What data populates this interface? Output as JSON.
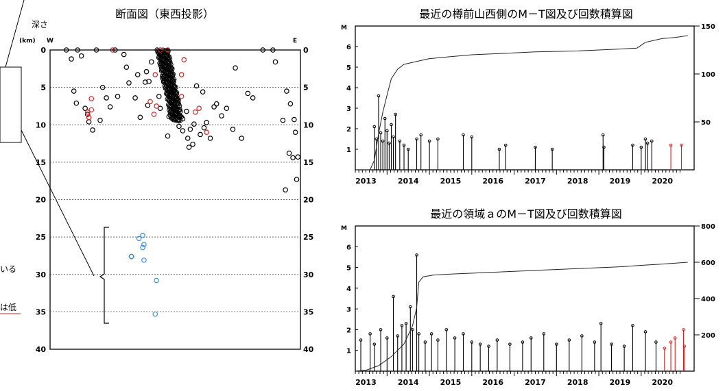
{
  "side_fragments": [
    "いる",
    "は低"
  ],
  "chart_data": [
    {
      "type": "scatter",
      "title": "断面図（東西投影）",
      "ylabel": "深さ",
      "yunit": "(km)",
      "west_label": "W",
      "east_label": "E",
      "ylim": [
        0,
        40
      ],
      "yticks": [
        0,
        5,
        10,
        15,
        20,
        25,
        30,
        35,
        40
      ],
      "grid": true,
      "series": [
        {
          "color": "#000000",
          "points": [
            [
              -0.87,
              0.0
            ],
            [
              -0.75,
              0.8
            ],
            [
              -0.83,
              1.2
            ],
            [
              -0.78,
              0.0
            ],
            [
              -0.63,
              0.0
            ],
            [
              -0.48,
              0.0
            ],
            [
              -0.39,
              2.3
            ],
            [
              -0.41,
              0.6
            ],
            [
              -0.3,
              3.3
            ],
            [
              -0.23,
              2.9
            ],
            [
              -0.19,
              1.6
            ],
            [
              -0.21,
              4.2
            ],
            [
              -0.13,
              6.2
            ],
            [
              -0.12,
              7.8
            ],
            [
              -0.1,
              3.8
            ],
            [
              -0.05,
              8.9
            ],
            [
              -0.03,
              5.7
            ],
            [
              0.0,
              8.0
            ],
            [
              0.03,
              10.2
            ],
            [
              0.06,
              10.8
            ],
            [
              0.1,
              11.8
            ],
            [
              0.11,
              13.0
            ],
            [
              0.14,
              12.6
            ],
            [
              0.2,
              11.3
            ],
            [
              0.23,
              10.4
            ],
            [
              0.28,
              11.8
            ],
            [
              0.31,
              7.6
            ],
            [
              0.37,
              8.8
            ],
            [
              0.41,
              7.8
            ],
            [
              0.48,
              2.4
            ],
            [
              0.46,
              10.6
            ],
            [
              0.58,
              5.8
            ],
            [
              0.62,
              6.4
            ],
            [
              0.7,
              0.0
            ],
            [
              0.53,
              11.8
            ],
            [
              0.78,
              0.0
            ],
            [
              0.8,
              1.6
            ],
            [
              0.86,
              9.4
            ],
            [
              0.89,
              5.5
            ],
            [
              0.92,
              7.2
            ],
            [
              0.95,
              9.3
            ],
            [
              0.96,
              11.0
            ],
            [
              0.91,
              13.8
            ],
            [
              0.94,
              14.4
            ],
            [
              0.88,
              18.7
            ],
            [
              0.97,
              17.3
            ],
            [
              0.98,
              14.3
            ],
            [
              -0.58,
              5.0
            ],
            [
              -0.55,
              6.4
            ],
            [
              -0.52,
              7.6
            ],
            [
              -0.6,
              9.4
            ],
            [
              -0.66,
              10.7
            ],
            [
              -0.7,
              8.6
            ],
            [
              -0.46,
              6.2
            ],
            [
              -0.32,
              6.4
            ],
            [
              -0.28,
              9.0
            ],
            [
              -0.22,
              7.4
            ],
            [
              -0.06,
              11.5
            ],
            [
              0.06,
              9.2
            ],
            [
              -0.24,
              4.3
            ],
            [
              -0.37,
              4.4
            ],
            [
              -0.35,
              27.6
            ],
            [
              -0.81,
              5.5
            ],
            [
              -0.79,
              7.1
            ],
            [
              -0.72,
              7.8
            ],
            [
              -0.69,
              9.6
            ],
            [
              -0.11,
              2.4
            ],
            [
              0.01,
              6.7
            ],
            [
              0.09,
              8.2
            ],
            [
              0.17,
              4.8
            ],
            [
              0.22,
              5.6
            ],
            [
              0.25,
              9.7
            ],
            [
              0.33,
              7.2
            ],
            [
              0.12,
              10.6
            ],
            [
              0.15,
              9.9
            ]
          ]
        },
        {
          "color": "#d62020",
          "points": [
            [
              -0.67,
              6.5
            ],
            [
              -0.67,
              8.0
            ],
            [
              -0.69,
              9.0
            ],
            [
              -0.7,
              8.3
            ],
            [
              -0.12,
              0.0
            ],
            [
              -0.06,
              0.0
            ],
            [
              -0.16,
              3.3
            ],
            [
              -0.2,
              6.9
            ],
            [
              -0.17,
              8.6
            ],
            [
              -0.15,
              7.5
            ],
            [
              0.07,
              1.3
            ],
            [
              0.05,
              3.3
            ],
            [
              0.05,
              6.2
            ],
            [
              0.19,
              7.8
            ],
            [
              0.25,
              11.0
            ],
            [
              -0.5,
              0.0
            ],
            [
              0.16,
              8.3
            ]
          ]
        },
        {
          "color": "#3a8ee0",
          "points": [
            [
              -0.35,
              27.6
            ],
            [
              -0.29,
              25.2
            ],
            [
              -0.26,
              24.8
            ],
            [
              -0.25,
              26.0
            ],
            [
              -0.26,
              26.4
            ],
            [
              -0.25,
              28.1
            ],
            [
              -0.15,
              30.8
            ],
            [
              -0.16,
              35.3
            ]
          ]
        }
      ]
    },
    {
      "type": "line",
      "title": "最近の樽前山西側のM－T図及び回数積算図",
      "ylabel": "M",
      "xlabel": "",
      "x_tick_labels": [
        "2013",
        "2014",
        "2015",
        "2016",
        "2017",
        "2018",
        "2019",
        "2020"
      ],
      "xlim": [
        2012.75,
        2020.75
      ],
      "ylim": [
        0,
        7
      ],
      "yticks": [
        1,
        2,
        3,
        4,
        5,
        6
      ],
      "y2lim": [
        0,
        150
      ],
      "y2ticks": [
        50,
        100,
        150
      ],
      "cumulative": {
        "x": [
          2012.75,
          2013.1,
          2013.2,
          2013.3,
          2013.4,
          2013.5,
          2013.6,
          2013.75,
          2013.9,
          2014.2,
          2014.5,
          2015.0,
          2015.5,
          2016.0,
          2017.0,
          2018.0,
          2018.5,
          2019.0,
          2019.4,
          2019.6,
          2019.8,
          2020.0,
          2020.3,
          2020.6
        ],
        "y": [
          0,
          0,
          10,
          38,
          60,
          78,
          95,
          105,
          110,
          113,
          116,
          118,
          120,
          121,
          123,
          124,
          125,
          126,
          127,
          133,
          135,
          137,
          138,
          140
        ]
      },
      "mt_events": [
        {
          "x": 2013.2,
          "m": 2.1,
          "color": "#000000"
        },
        {
          "x": 2013.25,
          "m": 1.5,
          "color": "#000000"
        },
        {
          "x": 2013.3,
          "m": 3.6,
          "color": "#000000"
        },
        {
          "x": 2013.35,
          "m": 1.8,
          "color": "#000000"
        },
        {
          "x": 2013.4,
          "m": 1.4,
          "color": "#000000"
        },
        {
          "x": 2013.45,
          "m": 2.5,
          "color": "#000000"
        },
        {
          "x": 2013.5,
          "m": 1.9,
          "color": "#000000"
        },
        {
          "x": 2013.55,
          "m": 1.3,
          "color": "#000000"
        },
        {
          "x": 2013.6,
          "m": 2.2,
          "color": "#000000"
        },
        {
          "x": 2013.65,
          "m": 1.6,
          "color": "#000000"
        },
        {
          "x": 2013.7,
          "m": 2.7,
          "color": "#000000"
        },
        {
          "x": 2013.8,
          "m": 1.4,
          "color": "#000000"
        },
        {
          "x": 2013.9,
          "m": 1.2,
          "color": "#000000"
        },
        {
          "x": 2014.0,
          "m": 1.0,
          "color": "#000000"
        },
        {
          "x": 2014.2,
          "m": 1.5,
          "color": "#000000"
        },
        {
          "x": 2014.3,
          "m": 1.7,
          "color": "#000000"
        },
        {
          "x": 2014.5,
          "m": 1.4,
          "color": "#000000"
        },
        {
          "x": 2014.7,
          "m": 1.5,
          "color": "#000000"
        },
        {
          "x": 2015.3,
          "m": 1.7,
          "color": "#000000"
        },
        {
          "x": 2015.5,
          "m": 1.6,
          "color": "#000000"
        },
        {
          "x": 2016.15,
          "m": 1.0,
          "color": "#000000"
        },
        {
          "x": 2016.3,
          "m": 1.2,
          "color": "#000000"
        },
        {
          "x": 2017.0,
          "m": 1.1,
          "color": "#000000"
        },
        {
          "x": 2017.4,
          "m": 1.0,
          "color": "#000000"
        },
        {
          "x": 2018.6,
          "m": 1.7,
          "color": "#000000"
        },
        {
          "x": 2018.62,
          "m": 1.1,
          "color": "#000000"
        },
        {
          "x": 2019.3,
          "m": 1.2,
          "color": "#000000"
        },
        {
          "x": 2019.5,
          "m": 1.1,
          "color": "#000000"
        },
        {
          "x": 2019.6,
          "m": 1.5,
          "color": "#000000"
        },
        {
          "x": 2019.65,
          "m": 1.3,
          "color": "#000000"
        },
        {
          "x": 2019.75,
          "m": 1.4,
          "color": "#000000"
        },
        {
          "x": 2020.2,
          "m": 1.2,
          "color": "#d62020"
        },
        {
          "x": 2020.45,
          "m": 1.2,
          "color": "#d62020"
        }
      ]
    },
    {
      "type": "line",
      "title": "最近の領域ａのM－T図及び回数積算図",
      "ylabel": "M",
      "xlabel": "",
      "x_tick_labels": [
        "2013",
        "2014",
        "2015",
        "2016",
        "2017",
        "2018",
        "2019",
        "2020"
      ],
      "xlim": [
        2012.75,
        2020.75
      ],
      "ylim": [
        0,
        7
      ],
      "yticks": [
        1,
        2,
        3,
        4,
        5,
        6
      ],
      "y2lim": [
        0,
        800
      ],
      "y2ticks": [
        200,
        400,
        600,
        800
      ],
      "cumulative": {
        "x": [
          2012.75,
          2013.0,
          2013.3,
          2013.6,
          2013.9,
          2014.1,
          2014.2,
          2014.25,
          2014.35,
          2014.6,
          2015.0,
          2016.0,
          2017.0,
          2018.0,
          2019.0,
          2019.5,
          2020.0,
          2020.6
        ],
        "y": [
          0,
          5,
          30,
          80,
          150,
          250,
          350,
          490,
          520,
          530,
          535,
          545,
          555,
          565,
          575,
          583,
          590,
          600
        ]
      },
      "mt_events": [
        {
          "x": 2012.88,
          "m": 1.5,
          "color": "#000000"
        },
        {
          "x": 2013.1,
          "m": 1.8,
          "color": "#000000"
        },
        {
          "x": 2013.2,
          "m": 1.3,
          "color": "#000000"
        },
        {
          "x": 2013.35,
          "m": 2.0,
          "color": "#000000"
        },
        {
          "x": 2013.5,
          "m": 1.6,
          "color": "#000000"
        },
        {
          "x": 2013.65,
          "m": 3.6,
          "color": "#000000"
        },
        {
          "x": 2013.75,
          "m": 1.7,
          "color": "#000000"
        },
        {
          "x": 2013.85,
          "m": 2.2,
          "color": "#000000"
        },
        {
          "x": 2013.95,
          "m": 2.3,
          "color": "#000000"
        },
        {
          "x": 2014.05,
          "m": 3.1,
          "color": "#000000"
        },
        {
          "x": 2014.1,
          "m": 2.0,
          "color": "#000000"
        },
        {
          "x": 2014.2,
          "m": 5.6,
          "color": "#000000"
        },
        {
          "x": 2014.25,
          "m": 1.8,
          "color": "#000000"
        },
        {
          "x": 2014.4,
          "m": 1.4,
          "color": "#000000"
        },
        {
          "x": 2014.55,
          "m": 1.8,
          "color": "#000000"
        },
        {
          "x": 2014.7,
          "m": 1.5,
          "color": "#000000"
        },
        {
          "x": 2014.9,
          "m": 2.0,
          "color": "#000000"
        },
        {
          "x": 2015.1,
          "m": 1.6,
          "color": "#000000"
        },
        {
          "x": 2015.3,
          "m": 1.8,
          "color": "#000000"
        },
        {
          "x": 2015.5,
          "m": 1.4,
          "color": "#000000"
        },
        {
          "x": 2015.7,
          "m": 1.3,
          "color": "#000000"
        },
        {
          "x": 2015.9,
          "m": 1.2,
          "color": "#000000"
        },
        {
          "x": 2016.1,
          "m": 1.5,
          "color": "#000000"
        },
        {
          "x": 2016.4,
          "m": 1.3,
          "color": "#000000"
        },
        {
          "x": 2016.7,
          "m": 1.4,
          "color": "#000000"
        },
        {
          "x": 2016.9,
          "m": 1.6,
          "color": "#000000"
        },
        {
          "x": 2017.2,
          "m": 1.8,
          "color": "#000000"
        },
        {
          "x": 2017.5,
          "m": 1.3,
          "color": "#000000"
        },
        {
          "x": 2017.8,
          "m": 1.5,
          "color": "#000000"
        },
        {
          "x": 2018.1,
          "m": 1.7,
          "color": "#000000"
        },
        {
          "x": 2018.4,
          "m": 1.4,
          "color": "#000000"
        },
        {
          "x": 2018.55,
          "m": 2.3,
          "color": "#000000"
        },
        {
          "x": 2018.8,
          "m": 1.3,
          "color": "#000000"
        },
        {
          "x": 2019.1,
          "m": 1.2,
          "color": "#000000"
        },
        {
          "x": 2019.3,
          "m": 2.2,
          "color": "#000000"
        },
        {
          "x": 2019.6,
          "m": 1.9,
          "color": "#000000"
        },
        {
          "x": 2019.85,
          "m": 1.4,
          "color": "#000000"
        },
        {
          "x": 2020.05,
          "m": 1.1,
          "color": "#d62020"
        },
        {
          "x": 2020.2,
          "m": 1.4,
          "color": "#d62020"
        },
        {
          "x": 2020.3,
          "m": 1.6,
          "color": "#d62020"
        },
        {
          "x": 2020.5,
          "m": 2.0,
          "color": "#d62020"
        },
        {
          "x": 2020.52,
          "m": 1.2,
          "color": "#d62020"
        }
      ]
    }
  ]
}
